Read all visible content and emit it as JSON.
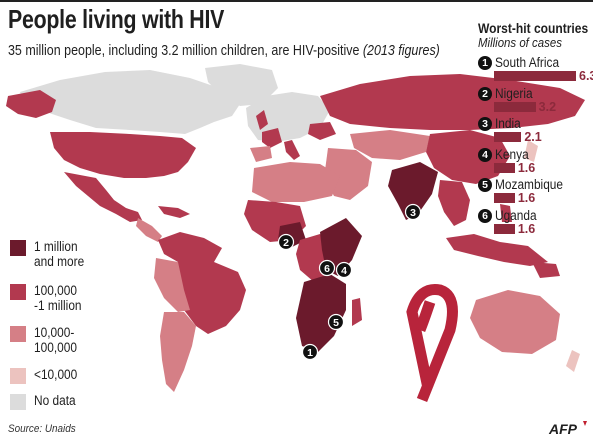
{
  "header": {
    "title": "People living with HIV",
    "subtitle": "35 million people, including 3.2 million children, are HIV-positive",
    "subtitle_year": "(2013 figures)"
  },
  "colors": {
    "cat1": "#6b1a2c",
    "cat2": "#b2394f",
    "cat3": "#d57f86",
    "cat4": "#ecc3bf",
    "nodata": "#dcdcdc",
    "bar": "#8c2a3c",
    "ribbon": "#b8243b"
  },
  "legend": [
    {
      "label": "1 million\nand more",
      "color": "#6b1a2c"
    },
    {
      "label": "100,000\n-1 million",
      "color": "#b2394f"
    },
    {
      "label": "10,000-\n100,000",
      "color": "#d57f86"
    },
    {
      "label": "<10,000",
      "color": "#ecc3bf"
    },
    {
      "label": "No data",
      "color": "#dcdcdc"
    }
  ],
  "worst_hit": {
    "title": "Worst-hit countries",
    "subtitle": "Millions of cases",
    "items": [
      {
        "rank": "1",
        "country": "South Africa",
        "value": "6.3",
        "cases": 6.3
      },
      {
        "rank": "2",
        "country": "Nigeria",
        "value": "3.2",
        "cases": 3.2
      },
      {
        "rank": "3",
        "country": "India",
        "value": "2.1",
        "cases": 2.1
      },
      {
        "rank": "4",
        "country": "Kenya",
        "value": "1.6",
        "cases": 1.6
      },
      {
        "rank": "5",
        "country": "Mozambique",
        "value": "1.6",
        "cases": 1.6
      },
      {
        "rank": "6",
        "country": "Uganda",
        "value": "1.6",
        "cases": 1.6
      }
    ]
  },
  "map_markers": [
    "1",
    "2",
    "3",
    "4",
    "5",
    "6"
  ],
  "source": "Source: Unaids",
  "logo": "AFP"
}
